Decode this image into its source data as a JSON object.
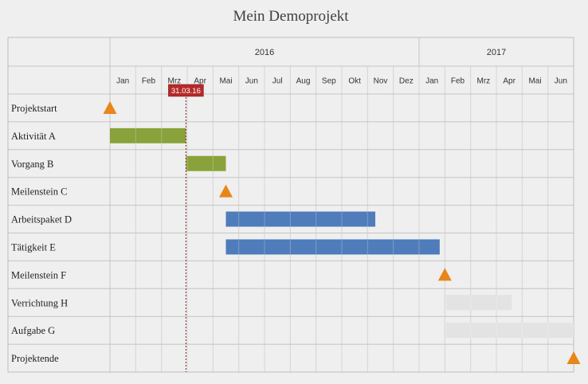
{
  "chart_data": {
    "type": "gantt",
    "title": "Mein Demoprojekt",
    "years": [
      {
        "label": "2016",
        "start_month": 0,
        "months": 12
      },
      {
        "label": "2017",
        "start_month": 12,
        "months": 6
      }
    ],
    "months": [
      "Jan",
      "Feb",
      "Mrz",
      "Apr",
      "Mai",
      "Jun",
      "Jul",
      "Aug",
      "Sep",
      "Okt",
      "Nov",
      "Dez",
      "Jan",
      "Feb",
      "Mrz",
      "Apr",
      "Mai",
      "Jun"
    ],
    "today": {
      "label": "31.03.16",
      "month_index": 2.95
    },
    "tasks": [
      {
        "name": "Projektstart",
        "kind": "milestone",
        "at": 0.0
      },
      {
        "name": "Aktivität A",
        "kind": "bar",
        "start": 0.0,
        "end": 2.95,
        "color": "#8aa23c"
      },
      {
        "name": "Vorgang B",
        "kind": "bar",
        "start": 2.95,
        "end": 4.5,
        "color": "#8aa23c"
      },
      {
        "name": "Meilenstein C",
        "kind": "milestone",
        "at": 4.5
      },
      {
        "name": "Arbeitspaket D",
        "kind": "bar",
        "start": 4.5,
        "end": 10.3,
        "color": "#4f7cba"
      },
      {
        "name": "Tätigkeit E",
        "kind": "bar",
        "start": 4.5,
        "end": 12.8,
        "color": "#4f7cba"
      },
      {
        "name": "Meilenstein F",
        "kind": "milestone",
        "at": 13.0
      },
      {
        "name": "Verrichtung H",
        "kind": "bar",
        "start": 13.05,
        "end": 15.6,
        "color": "#e3e3e3"
      },
      {
        "name": "Aufgabe G",
        "kind": "bar",
        "start": 13.05,
        "end": 18.0,
        "color": "#e3e3e3"
      },
      {
        "name": "Projektende",
        "kind": "milestone",
        "at": 18.0
      }
    ],
    "colors": {
      "milestone": "#e8861a",
      "today_line": "#8b1a1a",
      "today_badge": "#b52a2a"
    },
    "grid": true
  }
}
